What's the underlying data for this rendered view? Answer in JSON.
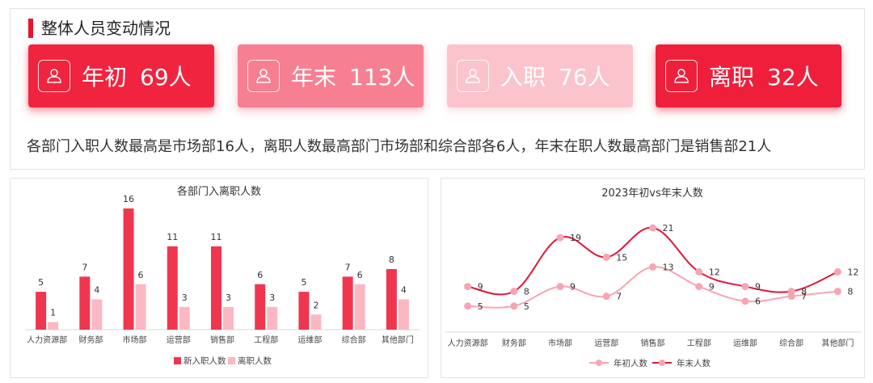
{
  "header": {
    "title": "整体人员变动情况"
  },
  "cards": [
    {
      "label": "年初",
      "value": "69人",
      "color": "#f0243f",
      "icon": "user-icon"
    },
    {
      "label": "年末",
      "value": "113人",
      "color": "#f77f92",
      "icon": "user-icon"
    },
    {
      "label": "入职",
      "value": "76人",
      "color": "#fbc4cc",
      "icon": "user-icon"
    },
    {
      "label": "离职",
      "value": "32人",
      "color": "#ef1f3b",
      "icon": "user-icon"
    }
  ],
  "summary": "各部门入职人数最高是市场部16人，离职人数最高部门市场部和综合部各6人，年末在职人数最高部门是销售部21人",
  "chart_data": [
    {
      "type": "bar",
      "title": "各部门入离职人数",
      "categories": [
        "人力资源部",
        "财务部",
        "市场部",
        "运营部",
        "销售部",
        "工程部",
        "运维部",
        "综合部",
        "其他部门"
      ],
      "series": [
        {
          "name": "新入职人数",
          "values": [
            5,
            7,
            16,
            11,
            11,
            6,
            5,
            7,
            8
          ],
          "color": "#f0364f"
        },
        {
          "name": "离职人数",
          "values": [
            1,
            4,
            6,
            3,
            3,
            3,
            2,
            6,
            4
          ],
          "color": "#fbb8c2"
        }
      ],
      "ylim": [
        0,
        16
      ],
      "legend": "bottom",
      "grid": false
    },
    {
      "type": "line",
      "title": "2023年初vs年末人数",
      "categories": [
        "人力资源部",
        "财务部",
        "市场部",
        "运营部",
        "销售部",
        "工程部",
        "运维部",
        "综合部",
        "其他部门"
      ],
      "series": [
        {
          "name": "年初人数",
          "values": [
            5,
            5,
            9,
            7,
            13,
            9,
            6,
            7,
            8
          ],
          "color": "#f7a5b3"
        },
        {
          "name": "年末人数",
          "values": [
            9,
            8,
            19,
            15,
            21,
            12,
            9,
            8,
            12
          ],
          "color": "#e3163a"
        }
      ],
      "ylim": [
        0,
        21
      ],
      "legend": "bottom",
      "grid": false,
      "smooth": true
    }
  ]
}
